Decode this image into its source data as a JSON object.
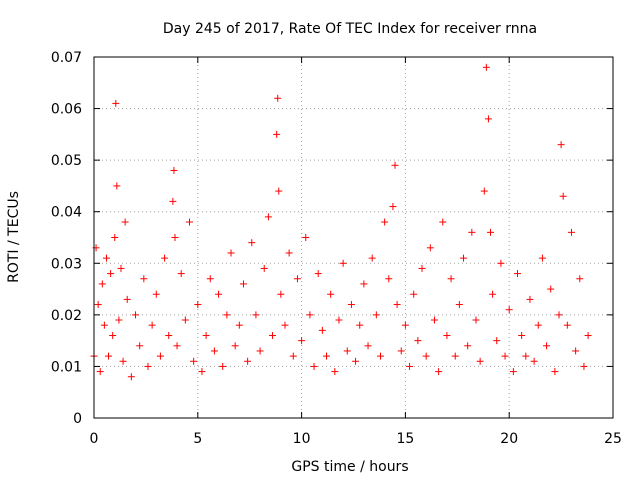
{
  "chart_data": {
    "type": "scatter",
    "title": "Day 245 of 2017, Rate Of TEC Index for receiver rnna",
    "xlabel": "GPS time / hours",
    "ylabel": "ROTI / TECUs",
    "xlim": [
      0,
      25
    ],
    "ylim": [
      0,
      0.07
    ],
    "x_ticks": [
      0,
      5,
      10,
      15,
      20,
      25
    ],
    "x_tick_labels": [
      "0",
      "5",
      "10",
      "15",
      "20",
      "25"
    ],
    "y_ticks": [
      0,
      0.01,
      0.02,
      0.03,
      0.04,
      0.05,
      0.06,
      0.07
    ],
    "y_tick_labels": [
      "0",
      "0.01",
      "0.02",
      "0.03",
      "0.04",
      "0.05",
      "0.06",
      "0.07"
    ],
    "grid": true,
    "marker": "+",
    "marker_color": "#ff0000",
    "series": [
      {
        "name": "ROTI",
        "x": [
          0.0,
          0.1,
          0.2,
          0.3,
          0.4,
          0.5,
          0.6,
          0.7,
          0.8,
          0.9,
          1.0,
          1.05,
          1.1,
          1.2,
          1.3,
          1.4,
          1.5,
          1.6,
          1.8,
          2.0,
          2.2,
          2.4,
          2.6,
          2.8,
          3.0,
          3.2,
          3.4,
          3.6,
          3.8,
          3.85,
          3.9,
          4.0,
          4.2,
          4.4,
          4.6,
          4.8,
          5.0,
          5.2,
          5.4,
          5.6,
          5.8,
          6.0,
          6.2,
          6.4,
          6.6,
          6.8,
          7.0,
          7.2,
          7.4,
          7.6,
          7.8,
          8.0,
          8.2,
          8.4,
          8.6,
          8.8,
          8.85,
          8.9,
          9.0,
          9.2,
          9.4,
          9.6,
          9.8,
          10.0,
          10.2,
          10.4,
          10.6,
          10.8,
          11.0,
          11.2,
          11.4,
          11.6,
          11.8,
          12.0,
          12.2,
          12.4,
          12.6,
          12.8,
          13.0,
          13.2,
          13.4,
          13.6,
          13.8,
          14.0,
          14.2,
          14.4,
          14.5,
          14.6,
          14.8,
          15.0,
          15.2,
          15.4,
          15.6,
          15.8,
          16.0,
          16.2,
          16.4,
          16.6,
          16.8,
          17.0,
          17.2,
          17.4,
          17.6,
          17.8,
          18.0,
          18.2,
          18.4,
          18.6,
          18.8,
          18.9,
          19.0,
          19.1,
          19.2,
          19.4,
          19.6,
          19.8,
          20.0,
          20.2,
          20.4,
          20.6,
          20.8,
          21.0,
          21.2,
          21.4,
          21.6,
          21.8,
          22.0,
          22.2,
          22.4,
          22.5,
          22.6,
          22.8,
          23.0,
          23.2,
          23.4,
          23.6,
          23.8
        ],
        "y": [
          0.012,
          0.033,
          0.022,
          0.009,
          0.026,
          0.018,
          0.031,
          0.012,
          0.028,
          0.016,
          0.035,
          0.061,
          0.045,
          0.019,
          0.029,
          0.011,
          0.038,
          0.023,
          0.008,
          0.02,
          0.014,
          0.027,
          0.01,
          0.018,
          0.024,
          0.012,
          0.031,
          0.016,
          0.042,
          0.048,
          0.035,
          0.014,
          0.028,
          0.019,
          0.038,
          0.011,
          0.022,
          0.009,
          0.016,
          0.027,
          0.013,
          0.024,
          0.01,
          0.02,
          0.032,
          0.014,
          0.018,
          0.026,
          0.011,
          0.034,
          0.02,
          0.013,
          0.029,
          0.039,
          0.016,
          0.055,
          0.062,
          0.044,
          0.024,
          0.018,
          0.032,
          0.012,
          0.027,
          0.015,
          0.035,
          0.02,
          0.01,
          0.028,
          0.017,
          0.012,
          0.024,
          0.009,
          0.019,
          0.03,
          0.013,
          0.022,
          0.011,
          0.018,
          0.026,
          0.014,
          0.031,
          0.02,
          0.012,
          0.038,
          0.027,
          0.041,
          0.049,
          0.022,
          0.013,
          0.018,
          0.01,
          0.024,
          0.015,
          0.029,
          0.012,
          0.033,
          0.019,
          0.009,
          0.038,
          0.016,
          0.027,
          0.012,
          0.022,
          0.031,
          0.014,
          0.036,
          0.019,
          0.011,
          0.044,
          0.068,
          0.058,
          0.036,
          0.024,
          0.015,
          0.03,
          0.012,
          0.021,
          0.009,
          0.028,
          0.016,
          0.012,
          0.023,
          0.011,
          0.018,
          0.031,
          0.014,
          0.025,
          0.009,
          0.02,
          0.053,
          0.043,
          0.018,
          0.036,
          0.013,
          0.027,
          0.01,
          0.016
        ]
      }
    ]
  }
}
